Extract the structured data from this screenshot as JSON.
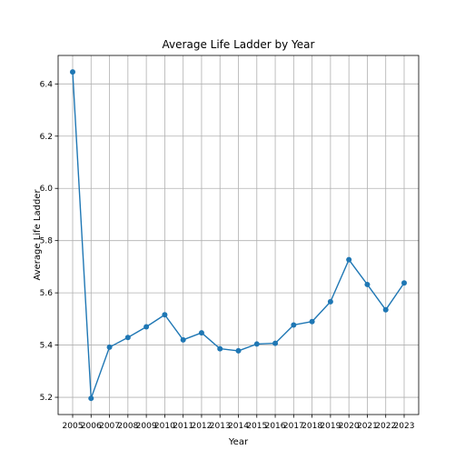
{
  "chart_data": {
    "type": "line",
    "title": "Average Life Ladder by Year",
    "xlabel": "Year",
    "ylabel": "Average Life Ladder",
    "x": [
      "2005",
      "2006",
      "2007",
      "2008",
      "2009",
      "2010",
      "2011",
      "2012",
      "2013",
      "2014",
      "2015",
      "2016",
      "2017",
      "2018",
      "2019",
      "2020",
      "2021",
      "2022",
      "2023"
    ],
    "series": [
      {
        "name": "",
        "values": [
          6.446,
          5.196,
          5.392,
          5.429,
          5.47,
          5.516,
          5.42,
          5.447,
          5.386,
          5.378,
          5.404,
          5.407,
          5.477,
          5.49,
          5.566,
          5.727,
          5.632,
          5.535,
          5.638
        ]
      }
    ],
    "yticks": [
      5.2,
      5.4,
      5.6,
      5.8,
      6.0,
      6.2,
      6.4
    ],
    "ytick_labels": [
      "5.2",
      "5.4",
      "5.6",
      "5.8",
      "6.0",
      "6.2",
      "6.4"
    ],
    "ylim": [
      5.134,
      6.509
    ],
    "grid": true,
    "line_color": "#1f77b4",
    "grid_color": "#b0b0b0"
  }
}
